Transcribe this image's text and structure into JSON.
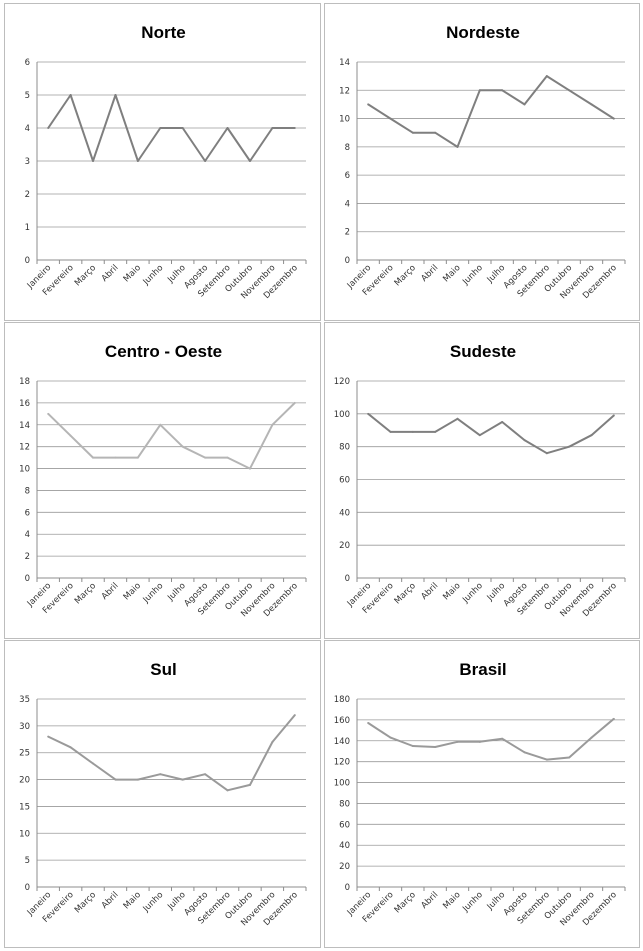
{
  "chart_data": [
    {
      "type": "line",
      "title": "Norte",
      "categories": [
        "Janeiro",
        "Fevereiro",
        "Março",
        "Abril",
        "Maio",
        "Junho",
        "Julho",
        "Agosto",
        "Setembro",
        "Outubro",
        "Novembro",
        "Dezembro"
      ],
      "yticks": [
        "0",
        "1",
        "2",
        "3",
        "4",
        "5",
        "6"
      ],
      "ylim": [
        0,
        6
      ],
      "grid": true,
      "series": [
        {
          "values": [
            4,
            5,
            3,
            5,
            3,
            4,
            4,
            3,
            4,
            3,
            4,
            4
          ],
          "color": "#7f7f7f"
        }
      ]
    },
    {
      "type": "line",
      "title": "Nordeste",
      "categories": [
        "Janeiro",
        "Fevereiro",
        "Março",
        "Abril",
        "Maio",
        "Junho",
        "Julho",
        "Agosto",
        "Setembro",
        "Outubro",
        "Novembro",
        "Dezembro"
      ],
      "yticks": [
        "0",
        "2",
        "4",
        "6",
        "8",
        "10",
        "12",
        "14"
      ],
      "ylim": [
        0,
        14
      ],
      "grid": true,
      "series": [
        {
          "values": [
            11,
            10,
            9,
            9,
            8,
            12,
            12,
            11,
            13,
            12,
            11,
            10
          ],
          "color": "#7f7f7f"
        }
      ]
    },
    {
      "type": "line",
      "title": "Centro - Oeste",
      "categories": [
        "Janeiro",
        "Fevereiro",
        "Março",
        "Abril",
        "Maio",
        "Junho",
        "Julho",
        "Agosto",
        "Setembro",
        "Outubro",
        "Novembro",
        "Dezembro"
      ],
      "yticks": [
        "0",
        "2",
        "4",
        "6",
        "8",
        "10",
        "12",
        "14",
        "16",
        "18"
      ],
      "ylim": [
        0,
        18
      ],
      "grid": true,
      "series": [
        {
          "values": [
            15,
            13,
            11,
            11,
            11,
            14,
            12,
            11,
            11,
            10,
            14,
            16
          ],
          "color": "#b5b5b5"
        }
      ]
    },
    {
      "type": "line",
      "title": "Sudeste",
      "categories": [
        "Janeiro",
        "Fevereiro",
        "Março",
        "Abril",
        "Maio",
        "Junho",
        "Julho",
        "Agosto",
        "Setembro",
        "Outubro",
        "Novembro",
        "Dezembro"
      ],
      "yticks": [
        "0",
        "20",
        "40",
        "60",
        "80",
        "100",
        "120"
      ],
      "ylim": [
        0,
        120
      ],
      "grid": true,
      "series": [
        {
          "values": [
            100,
            89,
            89,
            89,
            97,
            87,
            95,
            84,
            76,
            80,
            87,
            99
          ],
          "color": "#7f7f7f"
        }
      ]
    },
    {
      "type": "line",
      "title": "Sul",
      "categories": [
        "Janeiro",
        "Fevereiro",
        "Março",
        "Abril",
        "Maio",
        "Junho",
        "Julho",
        "Agosto",
        "Setembro",
        "Outubro",
        "Novembro",
        "Dezembro"
      ],
      "yticks": [
        "0",
        "5",
        "10",
        "15",
        "20",
        "25",
        "30",
        "35"
      ],
      "ylim": [
        0,
        35
      ],
      "grid": true,
      "series": [
        {
          "values": [
            28,
            26,
            23,
            20,
            20,
            21,
            20,
            21,
            18,
            19,
            27,
            32
          ],
          "color": "#9a9a9a"
        }
      ]
    },
    {
      "type": "line",
      "title": "Brasil",
      "categories": [
        "Janeiro",
        "Fevereiro",
        "Março",
        "Abril",
        "Maio",
        "Junho",
        "Julho",
        "Agosto",
        "Setembro",
        "Outubro",
        "Novembro",
        "Dezembro"
      ],
      "yticks": [
        "0",
        "20",
        "40",
        "60",
        "80",
        "100",
        "120",
        "140",
        "160",
        "180"
      ],
      "ylim": [
        0,
        180
      ],
      "grid": true,
      "series": [
        {
          "values": [
            157,
            143,
            135,
            134,
            139,
            139,
            142,
            129,
            122,
            124,
            143,
            161
          ],
          "color": "#9a9a9a"
        }
      ]
    }
  ]
}
